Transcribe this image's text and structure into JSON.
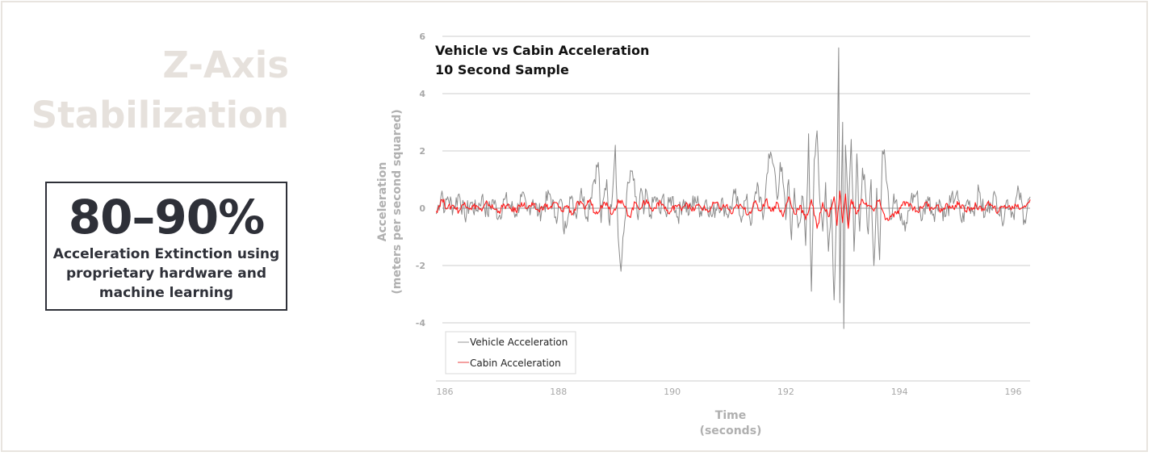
{
  "slide": {
    "headline_line1": "Z-Axis",
    "headline_line2": "Stabilization",
    "stat_value": "80–90%",
    "stat_desc_line1": "Acceleration Extinction using",
    "stat_desc_line2": "proprietary hardware and",
    "stat_desc_line3": "machine learning"
  },
  "colors": {
    "vehicle": "#8a8a8a",
    "cabin": "#ff1a1a",
    "grid": "#dedede",
    "headline": "#e6e1dc",
    "stat": "#2e3038"
  },
  "chart_data": {
    "type": "line",
    "title": "Vehicle vs Cabin Acceleration",
    "subtitle": "10 Second Sample",
    "xlabel": "Time",
    "xlabel_unit": "(seconds)",
    "ylabel": "Acceleration",
    "ylabel_unit": "(meters per second squared)",
    "xlim": [
      185.85,
      196.3
    ],
    "ylim": [
      -6,
      6
    ],
    "x_ticks": [
      "186",
      "188",
      "190",
      "192",
      "194",
      "196"
    ],
    "x_tick_values": [
      186,
      188,
      190,
      192,
      194,
      196
    ],
    "y_ticks": [
      "6",
      "4",
      "2",
      "0",
      "-2",
      "-4"
    ],
    "y_tick_values": [
      6,
      4,
      2,
      0,
      -2,
      -4
    ],
    "grid": true,
    "legend_position": "bottom-left",
    "series": [
      {
        "name": "Vehicle Acceleration",
        "x": [
          185.85,
          185.95,
          186.0,
          186.05,
          186.15,
          186.25,
          186.35,
          186.45,
          186.55,
          186.65,
          186.75,
          186.85,
          186.95,
          187.05,
          187.15,
          187.25,
          187.35,
          187.45,
          187.55,
          187.65,
          187.75,
          187.85,
          187.95,
          188.05,
          188.1,
          188.2,
          188.3,
          188.4,
          188.5,
          188.6,
          188.7,
          188.75,
          188.8,
          188.85,
          188.9,
          189.0,
          189.05,
          189.1,
          189.2,
          189.3,
          189.35,
          189.4,
          189.45,
          189.5,
          189.55,
          189.6,
          189.7,
          189.8,
          189.85,
          189.9,
          189.95,
          190.0,
          190.1,
          190.2,
          190.3,
          190.4,
          190.5,
          190.6,
          190.7,
          190.8,
          190.9,
          191.0,
          191.1,
          191.2,
          191.3,
          191.4,
          191.5,
          191.6,
          191.7,
          191.8,
          191.85,
          191.9,
          191.95,
          192.0,
          192.05,
          192.1,
          192.15,
          192.2,
          192.25,
          192.3,
          192.35,
          192.4,
          192.45,
          192.5,
          192.55,
          192.6,
          192.65,
          192.7,
          192.75,
          192.8,
          192.85,
          192.9,
          192.93,
          192.95,
          193.0,
          193.02,
          193.05,
          193.1,
          193.15,
          193.2,
          193.25,
          193.3,
          193.35,
          193.4,
          193.45,
          193.5,
          193.55,
          193.6,
          193.65,
          193.7,
          193.75,
          193.8,
          193.85,
          193.9,
          193.95,
          194.0,
          194.1,
          194.2,
          194.3,
          194.4,
          194.5,
          194.6,
          194.7,
          194.8,
          194.9,
          195.0,
          195.1,
          195.2,
          195.3,
          195.4,
          195.5,
          195.6,
          195.7,
          195.8,
          195.9,
          196.0,
          196.1,
          196.2,
          196.3
        ],
        "y": [
          -0.2,
          0.6,
          -0.1,
          0.4,
          0.0,
          0.5,
          -0.3,
          0.2,
          -0.1,
          0.4,
          -0.2,
          0.3,
          -0.3,
          0.3,
          0.1,
          -0.2,
          0.4,
          -0.1,
          0.3,
          -0.2,
          0.1,
          0.5,
          -0.3,
          0.3,
          -0.9,
          0.4,
          -0.2,
          0.7,
          -0.3,
          0.8,
          1.6,
          -0.5,
          0.4,
          1.0,
          -0.6,
          2.2,
          -1.0,
          -2.2,
          0.5,
          1.3,
          0.4,
          -0.4,
          0.7,
          -0.2,
          0.6,
          -0.3,
          0.4,
          -0.2,
          0.5,
          -0.3,
          0.2,
          0.4,
          -0.3,
          0.3,
          -0.2,
          0.4,
          -0.1,
          0.3,
          -0.3,
          0.2,
          0.1,
          -0.2,
          0.5,
          -0.3,
          0.3,
          -0.5,
          0.9,
          -0.4,
          1.9,
          1.4,
          0.3,
          1.6,
          0.9,
          -0.4,
          1.0,
          -1.1,
          0.7,
          -0.3,
          -0.5,
          0.4,
          -1.3,
          2.6,
          -2.9,
          1.7,
          2.7,
          0.2,
          -0.8,
          0.9,
          -1.5,
          0.3,
          -3.2,
          0.8,
          5.6,
          -3.3,
          3.0,
          -4.2,
          2.2,
          -0.6,
          2.4,
          -1.5,
          1.9,
          -0.8,
          1.4,
          0.6,
          -0.9,
          1.0,
          -2.0,
          0.7,
          -1.8,
          2.0,
          1.6,
          0.6,
          -0.4,
          0.5,
          0.3,
          -0.2,
          -0.8,
          0.3,
          0.5,
          -0.4,
          0.4,
          -0.2,
          0.3,
          -0.3,
          0.2,
          0.5,
          -0.5,
          0.3,
          -0.1,
          0.6,
          -0.3,
          0.2,
          0.4,
          -0.4,
          0.3,
          -0.2,
          0.6,
          -0.4,
          0.4
        ]
      },
      {
        "name": "Cabin Acceleration",
        "x": [
          185.85,
          185.95,
          186.05,
          186.15,
          186.25,
          186.35,
          186.45,
          186.55,
          186.65,
          186.75,
          186.85,
          186.95,
          187.05,
          187.15,
          187.25,
          187.35,
          187.45,
          187.55,
          187.65,
          187.75,
          187.85,
          187.95,
          188.05,
          188.15,
          188.25,
          188.35,
          188.45,
          188.55,
          188.65,
          188.75,
          188.85,
          188.95,
          189.05,
          189.15,
          189.25,
          189.35,
          189.45,
          189.55,
          189.65,
          189.75,
          189.85,
          189.95,
          190.05,
          190.15,
          190.25,
          190.35,
          190.45,
          190.55,
          190.65,
          190.75,
          190.85,
          190.95,
          191.05,
          191.15,
          191.25,
          191.35,
          191.45,
          191.55,
          191.65,
          191.75,
          191.85,
          191.95,
          192.05,
          192.15,
          192.25,
          192.35,
          192.45,
          192.55,
          192.65,
          192.75,
          192.85,
          192.9,
          192.95,
          193.0,
          193.05,
          193.1,
          193.15,
          193.25,
          193.35,
          193.45,
          193.55,
          193.65,
          193.75,
          193.85,
          193.95,
          194.05,
          194.15,
          194.25,
          194.35,
          194.45,
          194.55,
          194.65,
          194.75,
          194.85,
          194.95,
          195.05,
          195.15,
          195.25,
          195.35,
          195.45,
          195.55,
          195.65,
          195.75,
          195.85,
          195.95,
          196.05,
          196.15,
          196.3
        ],
        "y": [
          -0.1,
          0.3,
          0.0,
          0.1,
          -0.1,
          0.2,
          0.0,
          0.1,
          -0.1,
          0.2,
          0.0,
          -0.1,
          0.1,
          0.0,
          -0.1,
          0.2,
          0.0,
          0.1,
          -0.1,
          0.1,
          0.0,
          0.2,
          -0.1,
          0.1,
          -0.2,
          0.2,
          0.0,
          0.3,
          -0.2,
          0.1,
          0.2,
          -0.2,
          0.3,
          0.1,
          -0.3,
          0.2,
          0.0,
          0.3,
          -0.1,
          0.2,
          0.1,
          -0.2,
          0.1,
          0.0,
          0.2,
          -0.1,
          0.1,
          0.0,
          -0.1,
          0.2,
          0.0,
          0.1,
          -0.2,
          0.1,
          0.0,
          -0.2,
          0.2,
          -0.1,
          0.3,
          -0.1,
          0.2,
          -0.3,
          0.4,
          -0.2,
          0.1,
          -0.4,
          0.3,
          -0.7,
          0.2,
          -0.3,
          0.4,
          -0.6,
          0.6,
          -0.5,
          0.5,
          -0.7,
          0.3,
          -0.2,
          0.3,
          0.1,
          -0.1,
          0.3,
          -0.4,
          -0.3,
          -0.2,
          0.1,
          0.2,
          0.0,
          -0.1,
          0.2,
          0.0,
          0.1,
          -0.1,
          0.1,
          0.0,
          0.2,
          -0.1,
          0.0,
          0.1,
          -0.1,
          0.2,
          0.0,
          -0.1,
          0.1,
          0.0,
          0.1,
          0.0,
          0.3
        ]
      }
    ]
  }
}
